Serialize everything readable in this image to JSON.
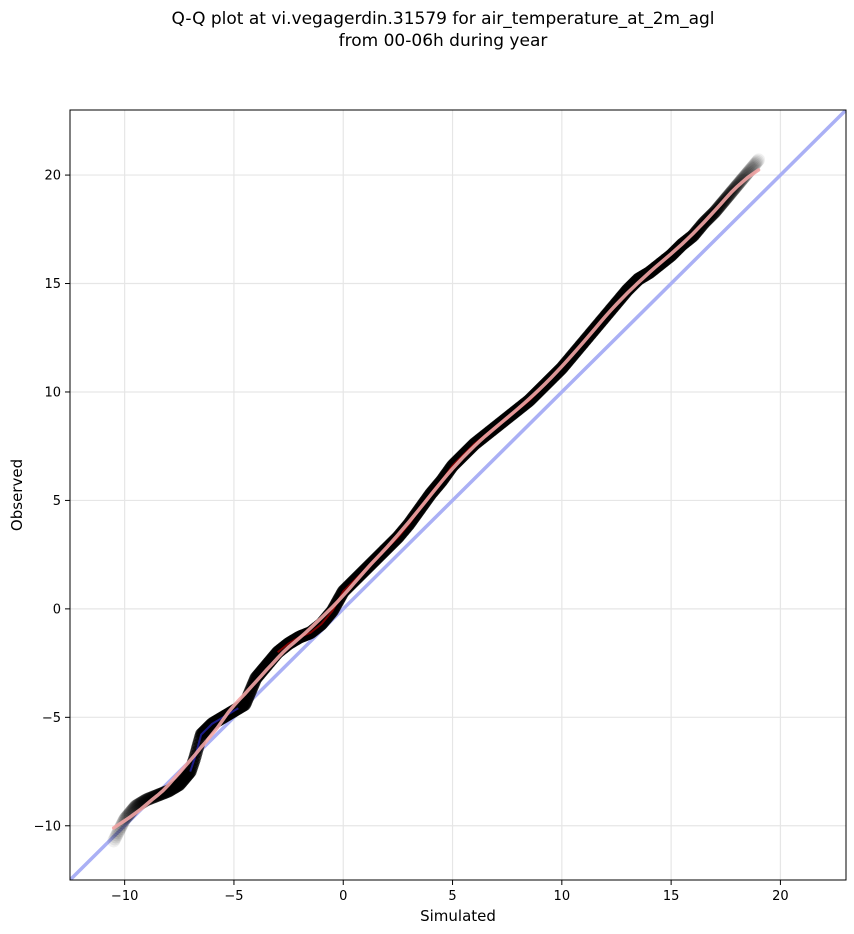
{
  "chart_data": {
    "type": "scatter",
    "title_line1": "Q-Q plot at vi.vegagerdin.31579 for air_temperature_at_2m_agl",
    "title_line2": "from 00-06h during year",
    "xlabel": "Simulated",
    "ylabel": "Observed",
    "xlim": [
      -12.5,
      23
    ],
    "ylim": [
      -12.5,
      23
    ],
    "xticks": [
      -10,
      -5,
      0,
      5,
      10,
      15,
      20
    ],
    "yticks": [
      -10,
      -5,
      0,
      5,
      10,
      15,
      20
    ],
    "xtick_labels": [
      "−10",
      "−5",
      "0",
      "5",
      "10",
      "15",
      "20"
    ],
    "ytick_labels": [
      "−10",
      "−5",
      "0",
      "5",
      "10",
      "15",
      "20"
    ],
    "grid": true,
    "quantile_points": {
      "x": [
        -10.5,
        -10.0,
        -9.5,
        -9.0,
        -8.5,
        -8.0,
        -7.5,
        -7.0,
        -6.8,
        -6.5,
        -6.0,
        -5.5,
        -5.0,
        -4.5,
        -4.0,
        -3.5,
        -3.0,
        -2.5,
        -2.0,
        -1.5,
        -1.0,
        -0.5,
        0.0,
        0.5,
        1.0,
        1.5,
        2.0,
        2.5,
        3.0,
        3.5,
        4.0,
        4.5,
        5.0,
        5.5,
        6.0,
        6.5,
        7.0,
        7.5,
        8.0,
        8.5,
        9.0,
        9.5,
        10.0,
        10.5,
        11.0,
        11.5,
        12.0,
        12.5,
        13.0,
        13.5,
        14.0,
        14.5,
        15.0,
        15.5,
        16.0,
        16.5,
        17.0,
        18.0,
        19.0
      ],
      "y": [
        -10.7,
        -9.7,
        -9.1,
        -8.8,
        -8.6,
        -8.4,
        -8.1,
        -7.5,
        -6.9,
        -5.8,
        -5.3,
        -5.0,
        -4.7,
        -4.4,
        -3.2,
        -2.6,
        -2.0,
        -1.6,
        -1.3,
        -1.1,
        -0.7,
        -0.1,
        0.8,
        1.3,
        1.8,
        2.3,
        2.8,
        3.3,
        3.9,
        4.6,
        5.3,
        5.9,
        6.6,
        7.1,
        7.6,
        8.0,
        8.4,
        8.8,
        9.2,
        9.6,
        10.1,
        10.6,
        11.1,
        11.7,
        12.3,
        12.9,
        13.5,
        14.1,
        14.7,
        15.2,
        15.5,
        15.9,
        16.3,
        16.8,
        17.2,
        17.8,
        18.3,
        19.5,
        20.7
      ]
    },
    "reference_line_color": "#aab0f5",
    "fit_line_color": "#f3a5a5",
    "point_color": "#000000",
    "highlight_colors": {
      "low_segment": "#2020a0",
      "center_segment": "#8b0000"
    }
  }
}
